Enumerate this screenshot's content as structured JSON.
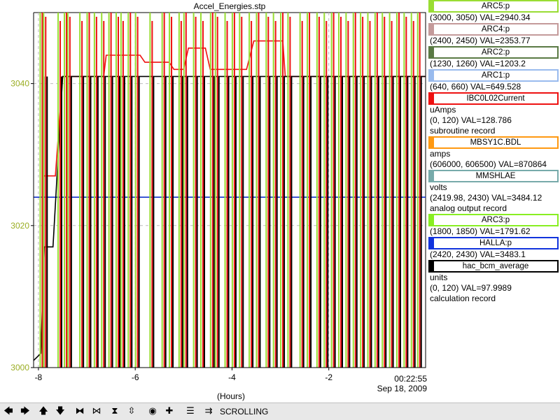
{
  "chart_data": {
    "type": "line",
    "title": "Accel_Energies.stp",
    "xlabel": "(Hours)",
    "xlim": [
      -8.1,
      0.0
    ],
    "ylim": [
      3000,
      3050
    ],
    "x_ticks": [
      "-8",
      "-6",
      "-4",
      "-2"
    ],
    "x_tick_values": [
      -8,
      -6,
      -4,
      -2
    ],
    "y_ticks": [
      "3000",
      "3020",
      "3040"
    ],
    "y_tick_values": [
      3000,
      3020,
      3040
    ],
    "end_time": "00:22:55",
    "end_date": "Sep 18, 2009",
    "grid": true,
    "legend_position": "right",
    "series": [
      {
        "name": "ARC5:p",
        "color": "#99cc44",
        "values": []
      },
      {
        "name": "ARC4:p",
        "color": "#c09090",
        "values": []
      },
      {
        "name": "ARC2:p",
        "color": "#557744",
        "values": []
      },
      {
        "name": "ARC1:p",
        "color": "#88aaee",
        "values": []
      },
      {
        "name": "IBC0L02Current",
        "color": "#ee1111",
        "points": [
          [
            -7.88,
            3027
          ],
          [
            -7.65,
            3027
          ],
          [
            -7.5,
            3041
          ],
          [
            -6.65,
            3041
          ],
          [
            -6.6,
            3044
          ],
          [
            -5.9,
            3044
          ],
          [
            -5.8,
            3043
          ],
          [
            -5.3,
            3043
          ],
          [
            -5.2,
            3042
          ],
          [
            -5.0,
            3042
          ],
          [
            -4.9,
            3045
          ],
          [
            -4.55,
            3045
          ],
          [
            -4.45,
            3042
          ],
          [
            -3.7,
            3042
          ],
          [
            -3.55,
            3046
          ],
          [
            -2.95,
            3046
          ],
          [
            -2.9,
            3041
          ],
          [
            0,
            3041
          ]
        ]
      },
      {
        "name": "MBSY1C.BDL",
        "color": "#ff9900",
        "values": []
      },
      {
        "name": "MMSHLAE",
        "color": "#669999",
        "values": []
      },
      {
        "name": "ARC3:p",
        "color": "#88dd22",
        "values": []
      },
      {
        "name": "HALLA:p",
        "color": "#1133cc",
        "points": [
          [
            -8.1,
            3024
          ],
          [
            0,
            3024
          ]
        ]
      },
      {
        "name": "hac_bcm_average",
        "color": "#000000",
        "points": [
          [
            -8.1,
            3001
          ],
          [
            -7.95,
            3002
          ],
          [
            -7.88,
            3017
          ],
          [
            -7.7,
            3017
          ],
          [
            -7.5,
            3041
          ],
          [
            0,
            3041
          ]
        ]
      }
    ],
    "dropouts": [
      -7.92,
      -7.85,
      -7.55,
      -7.42,
      -7.35,
      -7.1,
      -6.95,
      -6.8,
      -6.65,
      -6.5,
      -6.35,
      -6.25,
      -6.1,
      -5.95,
      -5.65,
      -5.4,
      -5.25,
      -5.05,
      -4.95,
      -4.75,
      -4.6,
      -4.4,
      -4.3,
      -4.1,
      -3.95,
      -3.8,
      -3.6,
      -3.45,
      -3.25,
      -3.1,
      -2.95,
      -2.8,
      -2.55,
      -2.4,
      -2.2,
      -2.05,
      -1.9,
      -1.75,
      -1.6,
      -1.45,
      -1.3,
      -1.15,
      -1.0,
      -0.85,
      -0.7,
      -0.55,
      -0.4,
      -0.25,
      -0.12
    ]
  },
  "legend": [
    {
      "name": "ARC5:p",
      "color": "#99dd33",
      "lines": [
        "(3000, 3050) VAL=2940.34"
      ]
    },
    {
      "name": "ARC4:p",
      "color": "#c49a9a",
      "lines": [
        "(2400, 2450) VAL=2353.77"
      ]
    },
    {
      "name": "ARC2:p",
      "color": "#5a7a44",
      "lines": [
        "(1230, 1260) VAL=1203.2"
      ]
    },
    {
      "name": "ARC1:p",
      "color": "#99bbee",
      "lines": [
        "(640, 660) VAL=649.528"
      ]
    },
    {
      "name": "IBC0L02Current",
      "color": "#ee1111",
      "lines": [
        "uAmps",
        "(0, 120) VAL=128.786",
        "subroutine record"
      ]
    },
    {
      "name": "MBSY1C.BDL",
      "color": "#ff9911",
      "lines": [
        "amps",
        "(606000, 606500) VAL=870864"
      ]
    },
    {
      "name": "MMSHLAE",
      "color": "#77aaaa",
      "lines": [
        "volts",
        "(2419.98, 2430)  VAL=3484.12",
        "analog output record"
      ]
    },
    {
      "name": "ARC3:p",
      "color": "#88ee22",
      "lines": [
        "(1800, 1850) VAL=1791.62"
      ]
    },
    {
      "name": "HALLA:p",
      "color": "#1133dd",
      "lines": [
        "(2420, 2430) VAL=3483.1"
      ]
    },
    {
      "name": "hac_bcm_average",
      "color": "#000000",
      "lines": [
        "units",
        "(0, 120) VAL=97.9989",
        "calculation record"
      ]
    }
  ],
  "toolbar": {
    "mode": "SCROLLING",
    "buttons": [
      {
        "name": "scroll-left-button",
        "glyph": "🡄"
      },
      {
        "name": "scroll-right-button",
        "glyph": "🡆"
      },
      {
        "name": "scroll-up-button",
        "glyph": "🡅"
      },
      {
        "name": "scroll-down-button",
        "glyph": "🡇"
      },
      {
        "name": "zoom-in-x-button",
        "glyph": "⧓"
      },
      {
        "name": "zoom-out-x-button",
        "glyph": "⋈"
      },
      {
        "name": "zoom-in-y-button",
        "glyph": "⧗"
      },
      {
        "name": "zoom-out-y-button",
        "glyph": "⇳"
      },
      {
        "name": "autoscale-button",
        "glyph": "◉"
      },
      {
        "name": "add-button",
        "glyph": "✚"
      },
      {
        "name": "stagger-button",
        "glyph": "☰"
      },
      {
        "name": "scroll-mode-button",
        "glyph": "⇉"
      }
    ]
  }
}
